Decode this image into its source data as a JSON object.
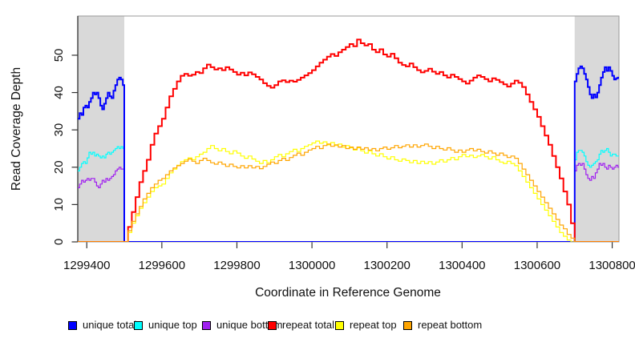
{
  "figure": {
    "background": "#ffffff"
  },
  "chart_data": {
    "type": "line",
    "title": "",
    "xlabel": "Coordinate in Reference Genome",
    "ylabel": "Read Coverage Depth",
    "xlim": [
      1299376,
      1300818
    ],
    "ylim": [
      0,
      60.5
    ],
    "x_ticks": [
      1299400,
      1299600,
      1299800,
      1300000,
      1300200,
      1300400,
      1300600,
      1300800
    ],
    "y_ticks": [
      0,
      10,
      20,
      30,
      40,
      50
    ],
    "grid": false,
    "legend_position": "bottom",
    "shaded_regions": [
      {
        "name": "left-flank",
        "x_start": 1299376,
        "x_end": 1299500,
        "color": "#d9d9d9"
      },
      {
        "name": "right-flank",
        "x_start": 1300700,
        "x_end": 1300818,
        "color": "#d9d9d9"
      }
    ],
    "colors": {
      "unique_total": "#0000ff",
      "unique_top": "#00ffff",
      "unique_bottom": "#a020f0",
      "repeat_total": "#ff0000",
      "repeat_top": "#ffff00",
      "repeat_bottom": "#ffa500",
      "band": "#d9d9d9",
      "box": "#999999",
      "axis": "#222222"
    },
    "series": [
      {
        "name": "unique top",
        "key": "unique_top",
        "color": "#00ffff",
        "width": 1.2,
        "segments": [
          {
            "x0": 1299376,
            "dx": 5,
            "values": [
              19,
              20,
              21,
              21.5,
              21,
              22.5,
              24,
              23.5,
              24,
              23,
              23.5,
              23,
              22.5,
              23,
              22.5,
              23.5,
              24,
              23.5,
              24,
              24.5,
              25,
              25.5,
              25,
              25.5,
              25
            ]
          },
          {
            "x0": 1299500,
            "dx": 1200,
            "values": [
              0,
              0
            ]
          },
          {
            "x0": 1300700,
            "dx": 5,
            "values": [
              22,
              24,
              24.5,
              24.5,
              24,
              23,
              21.5,
              20.5,
              20,
              20.5,
              21,
              21.5,
              22,
              23.5,
              24.5,
              24,
              24.5,
              25,
              24,
              23,
              23.5,
              23.5,
              23,
              23,
              23
            ]
          }
        ]
      },
      {
        "name": "unique bottom",
        "key": "unique_bottom",
        "color": "#a020f0",
        "width": 1.2,
        "segments": [
          {
            "x0": 1299376,
            "dx": 5,
            "values": [
              14.5,
              15.5,
              16.5,
              16,
              16.5,
              17,
              16.5,
              17,
              17,
              16,
              15,
              14.5,
              15.5,
              16.5,
              16,
              17,
              16.5,
              17,
              17.5,
              18,
              19,
              19.5,
              20,
              19.5,
              19.5
            ]
          },
          {
            "x0": 1299500,
            "dx": 1200,
            "values": [
              0,
              0
            ]
          },
          {
            "x0": 1300700,
            "dx": 5,
            "values": [
              19,
              20.5,
              21,
              20.5,
              21,
              19.5,
              18,
              17,
              16.5,
              17.5,
              17,
              18.5,
              19.5,
              21,
              20.5,
              21,
              20,
              19.5,
              20.5,
              20,
              19.5,
              20,
              20.5,
              20,
              20
            ]
          }
        ]
      },
      {
        "name": "unique total",
        "key": "unique_total",
        "color": "#0000ff",
        "width": 2,
        "segments": [
          {
            "x0": 1299376,
            "dx": 5,
            "values": [
              33,
              34.5,
              34,
              36,
              36.5,
              36,
              37.5,
              38.5,
              40,
              39.5,
              40,
              38.5,
              36.5,
              35.5,
              37,
              38.5,
              40,
              39,
              38.5,
              40.5,
              42,
              43.5,
              44,
              43.5,
              42
            ]
          },
          {
            "x0": 1299500,
            "dx": 1200,
            "values": [
              0,
              0
            ]
          },
          {
            "x0": 1300700,
            "dx": 5,
            "values": [
              43,
              45,
              46.5,
              47,
              46.5,
              45,
              43.5,
              41.5,
              39.5,
              38.5,
              39.5,
              38.7,
              40,
              42,
              44,
              45.5,
              46.8,
              45.8,
              46.8,
              45.8,
              44.5,
              43.5,
              43.8,
              44,
              44
            ]
          }
        ]
      },
      {
        "name": "repeat total",
        "key": "repeat_total",
        "color": "#ff0000",
        "width": 2,
        "segments": [
          {
            "x0": 1299376,
            "dx": 124,
            "values": [
              0,
              0
            ]
          },
          {
            "x0": 1299500,
            "dx": 10,
            "values": [
              0,
              4,
              8,
              12,
              16,
              19,
              22,
              26,
              29,
              31,
              33,
              36,
              39,
              41,
              43,
              44.5,
              45,
              44.5,
              44.8,
              45.5,
              45.2,
              46.5,
              47.5,
              46.8,
              46.2,
              46.5,
              46,
              46.8,
              46.2,
              45.5,
              44.8,
              45.3,
              44.6,
              45.4,
              44.9,
              44.2,
              43.5,
              42.5,
              41.8,
              41.3,
              42,
              43,
              43.3,
              42.8,
              43.2,
              42.9,
              43.4,
              44,
              44.6,
              45.2,
              46,
              47,
              48,
              48.8,
              49.6,
              50.3,
              49.8,
              50.8,
              51.5,
              52.2,
              53,
              52.4,
              54.2,
              53.2,
              52.6,
              53,
              51.5,
              50.8,
              51.6,
              50.2,
              49.6,
              50.4,
              49.2,
              48,
              47.4,
              47,
              47.8,
              46.8,
              46,
              45.4,
              45.8,
              46.4,
              45.6,
              45,
              45.5,
              44.6,
              44,
              44.8,
              44.2,
              43.6,
              43,
              42.4,
              43.2,
              44,
              44.6,
              44.2,
              43.6,
              43,
              43.8,
              43.4,
              42.8,
              42.2,
              41.6,
              42.4,
              43.2,
              42.6,
              41.5,
              39.5,
              37.5,
              35.5,
              33.5,
              31,
              28.5,
              26,
              23,
              20,
              17,
              13.5,
              10,
              5,
              2
            ]
          },
          {
            "x0": 1300700,
            "dx": 118,
            "values": [
              0,
              0
            ]
          }
        ]
      },
      {
        "name": "repeat top",
        "key": "repeat_top",
        "color": "#ffff00",
        "width": 1.2,
        "segments": [
          {
            "x0": 1299376,
            "dx": 124,
            "values": [
              0,
              0
            ]
          },
          {
            "x0": 1299500,
            "dx": 10,
            "values": [
              0,
              2.5,
              5,
              7,
              9,
              10.5,
              12,
              13.5,
              14.5,
              15,
              15.5,
              17,
              18.5,
              19.5,
              20.5,
              21.5,
              22,
              22.5,
              22,
              22.8,
              23.5,
              24,
              25,
              25.8,
              25,
              24.4,
              25,
              24.2,
              23.6,
              24.4,
              23.8,
              23,
              22.4,
              23,
              22.2,
              21.6,
              21,
              21.8,
              21.2,
              22,
              22.8,
              23.4,
              22.8,
              23.6,
              24.2,
              24.8,
              24.2,
              25,
              25.6,
              26,
              26.5,
              27,
              26.4,
              26.8,
              26,
              26.6,
              25.8,
              26.2,
              25.4,
              25.8,
              25.2,
              24.6,
              25.2,
              24.4,
              23.8,
              24.4,
              23.6,
              23,
              23.6,
              22.8,
              22.2,
              22.8,
              22,
              21.6,
              22.2,
              21.8,
              21.2,
              21.8,
              21,
              21.6,
              21,
              21.5,
              20.8,
              21.4,
              22,
              21.4,
              22,
              22.6,
              22,
              22.8,
              23.4,
              22.8,
              23.2,
              22.6,
              23,
              23.4,
              22.8,
              22.2,
              22.8,
              22,
              21.4,
              21,
              21.6,
              21,
              20.4,
              19,
              17.5,
              16,
              14.5,
              13,
              11.5,
              10,
              8.5,
              7,
              5.5,
              4,
              2.5,
              1.5,
              0.5,
              0,
              0
            ]
          },
          {
            "x0": 1300700,
            "dx": 118,
            "values": [
              0,
              0
            ]
          }
        ]
      },
      {
        "name": "repeat bottom",
        "key": "repeat_bottom",
        "color": "#ffa500",
        "width": 1.2,
        "segments": [
          {
            "x0": 1299376,
            "dx": 124,
            "values": [
              0,
              0
            ]
          },
          {
            "x0": 1299500,
            "dx": 10,
            "values": [
              0,
              3,
              5.5,
              7.5,
              9.5,
              11.5,
              13,
              14.5,
              15.5,
              16.5,
              17,
              18,
              19,
              19.8,
              20.4,
              21,
              21.6,
              22.2,
              21.6,
              21,
              21.8,
              22.4,
              21.8,
              21.2,
              20.8,
              21.4,
              20.8,
              20.2,
              20.8,
              20.2,
              19.8,
              20.4,
              19.8,
              20.4,
              19.8,
              20.2,
              19.6,
              20.2,
              20.8,
              21.4,
              21,
              21.8,
              22.4,
              21.8,
              22.6,
              23.2,
              23.8,
              23.2,
              24,
              24.6,
              25,
              25.6,
              25,
              25.8,
              26.2,
              25.6,
              26,
              25.4,
              25.8,
              25,
              25.4,
              24.8,
              25.4,
              24.8,
              25.2,
              24.6,
              25,
              24.4,
              25,
              25.4,
              24.8,
              25.2,
              25.8,
              25.2,
              25.6,
              26,
              25.4,
              26,
              25.4,
              25.8,
              26.2,
              25.6,
              25,
              25.6,
              25,
              24.6,
              25.2,
              24.6,
              24,
              24.6,
              24,
              24.6,
              25,
              24.4,
              24.8,
              24.2,
              23.8,
              24.4,
              23.8,
              23.2,
              23.8,
              23.2,
              22.6,
              23,
              22.4,
              21,
              19.5,
              18,
              16.5,
              15,
              13.5,
              12,
              10.5,
              9,
              7.5,
              6,
              4.5,
              3.5,
              2,
              1,
              0
            ]
          },
          {
            "x0": 1300700,
            "dx": 118,
            "values": [
              0,
              0
            ]
          }
        ]
      }
    ]
  },
  "legend": {
    "items": [
      {
        "label": "unique total",
        "color": "#0000ff"
      },
      {
        "label": "unique top",
        "color": "#00ffff"
      },
      {
        "label": "unique bottom",
        "color": "#a020f0"
      },
      {
        "label": "repeat total",
        "color": "#ff0000"
      },
      {
        "label": "repeat top",
        "color": "#ffff00"
      },
      {
        "label": "repeat bottom",
        "color": "#ffa500"
      }
    ]
  }
}
